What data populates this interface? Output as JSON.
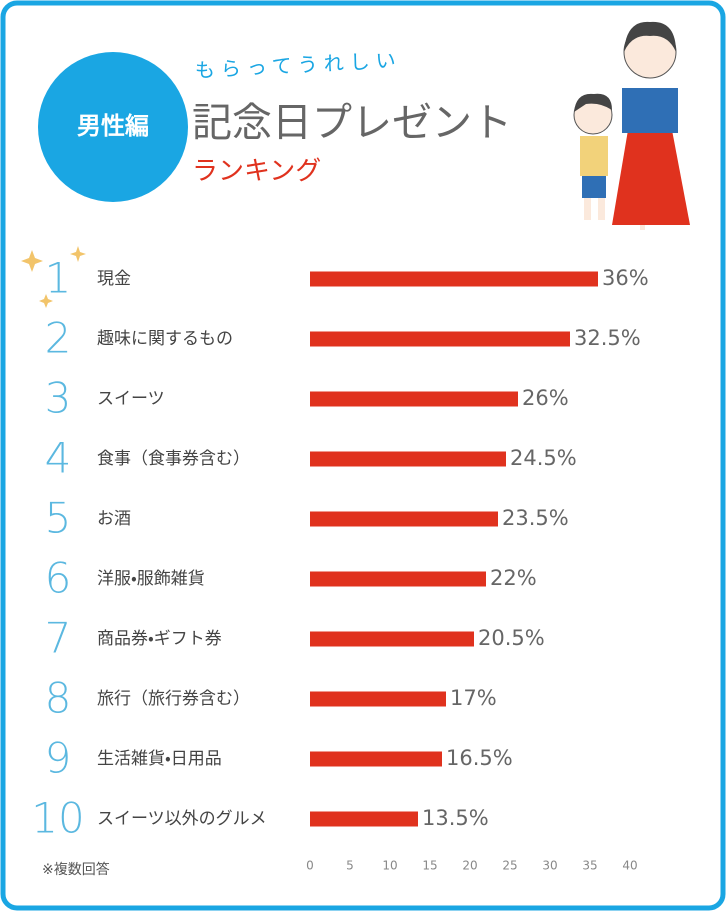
{
  "chart_data": {
    "type": "bar",
    "orientation": "horizontal",
    "badge": "男性編",
    "subtitle": "もらってうれしい",
    "title": "記念日プレゼント",
    "heading": "ランキング",
    "ranks": [
      "1",
      "2",
      "3",
      "4",
      "5",
      "6",
      "7",
      "8",
      "9",
      "10"
    ],
    "categories": [
      "現金",
      "趣味に関するもの",
      "スイーツ",
      "食事（食事券含む）",
      "お酒",
      "洋服・服飾雑貨",
      "商品券・ギフト券",
      "旅行（旅行券含む）",
      "生活雑貨・日用品",
      "スイーツ以外のグルメ"
    ],
    "values": [
      36,
      32.5,
      26,
      24.5,
      23.5,
      22,
      20.5,
      17,
      16.5,
      13.5
    ],
    "value_labels": [
      "36%",
      "32.5%",
      "26%",
      "24.5%",
      "23.5%",
      "22%",
      "20.5%",
      "17%",
      "16.5%",
      "13.5%"
    ],
    "color": "#e0321e",
    "xlim": [
      0,
      40
    ],
    "xticks": [
      0,
      5,
      10,
      15,
      20,
      25,
      30,
      35,
      40
    ],
    "note": "※複数回答"
  }
}
